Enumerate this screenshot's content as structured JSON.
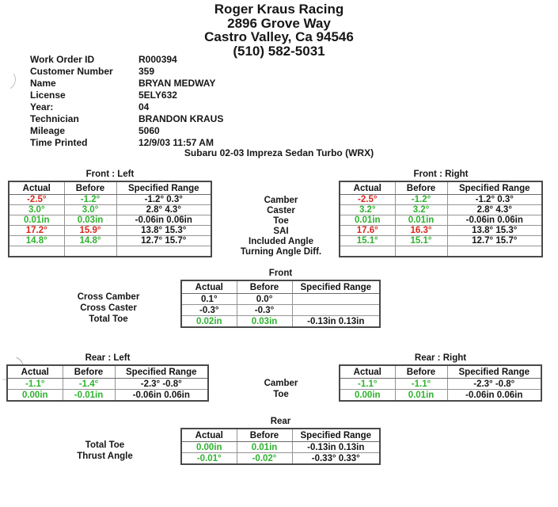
{
  "colors": {
    "ok_green": "#2eb22e",
    "alert_red": "#d8271f"
  },
  "header": {
    "business_name": "Roger Kraus Racing",
    "address_line1": "2896 Grove Way",
    "address_line2": "Castro Valley, Ca 94546",
    "phone": "(510) 582-5031"
  },
  "work_order": [
    {
      "label": "Work Order ID",
      "value": "R000394"
    },
    {
      "label": "Customer Number",
      "value": "359"
    },
    {
      "label": "Name",
      "value": "BRYAN MEDWAY"
    },
    {
      "label": "License",
      "value": "5ELY632"
    },
    {
      "label": "Year:",
      "value": "04"
    },
    {
      "label": "Technician",
      "value": "BRANDON KRAUS"
    },
    {
      "label": "Mileage",
      "value": "5060"
    },
    {
      "label": "Time Printed",
      "value": "12/9/03 11:57 AM"
    }
  ],
  "vehicle_title": "Subaru 02-03 Impreza Sedan Turbo (WRX)",
  "col_headers": [
    "Actual",
    "Before",
    "Specified Range"
  ],
  "front": {
    "left_title": "Front : Left",
    "right_title": "Front : Right",
    "row_labels": [
      "Camber",
      "Caster",
      "Toe",
      "SAI",
      "Included Angle",
      "Turning Angle Diff."
    ],
    "left_rows": [
      [
        {
          "t": "-2.5°",
          "c": "r"
        },
        {
          "t": "-1.2°",
          "c": "g"
        },
        {
          "t": "-1.2° 0.3°",
          "c": "k"
        }
      ],
      [
        {
          "t": "3.0°",
          "c": "g"
        },
        {
          "t": "3.0°",
          "c": "g"
        },
        {
          "t": "2.8° 4.3°",
          "c": "k"
        }
      ],
      [
        {
          "t": "0.01in",
          "c": "g"
        },
        {
          "t": "0.03in",
          "c": "g"
        },
        {
          "t": "-0.06in 0.06in",
          "c": "k"
        }
      ],
      [
        {
          "t": "17.2°",
          "c": "r"
        },
        {
          "t": "15.9°",
          "c": "r"
        },
        {
          "t": "13.8° 15.3°",
          "c": "k"
        }
      ],
      [
        {
          "t": "14.8°",
          "c": "g"
        },
        {
          "t": "14.8°",
          "c": "g"
        },
        {
          "t": "12.7° 15.7°",
          "c": "k"
        }
      ],
      [
        {
          "t": "",
          "c": "k"
        },
        {
          "t": "",
          "c": "k"
        },
        {
          "t": "",
          "c": "k"
        }
      ]
    ],
    "right_rows": [
      [
        {
          "t": "-2.5°",
          "c": "r"
        },
        {
          "t": "-1.2°",
          "c": "g"
        },
        {
          "t": "-1.2° 0.3°",
          "c": "k"
        }
      ],
      [
        {
          "t": "3.2°",
          "c": "g"
        },
        {
          "t": "3.2°",
          "c": "g"
        },
        {
          "t": "2.8° 4.3°",
          "c": "k"
        }
      ],
      [
        {
          "t": "0.01in",
          "c": "g"
        },
        {
          "t": "0.01in",
          "c": "g"
        },
        {
          "t": "-0.06in 0.06in",
          "c": "k"
        }
      ],
      [
        {
          "t": "17.6°",
          "c": "r"
        },
        {
          "t": "16.3°",
          "c": "r"
        },
        {
          "t": "13.8° 15.3°",
          "c": "k"
        }
      ],
      [
        {
          "t": "15.1°",
          "c": "g"
        },
        {
          "t": "15.1°",
          "c": "g"
        },
        {
          "t": "12.7° 15.7°",
          "c": "k"
        }
      ],
      [
        {
          "t": "",
          "c": "k"
        },
        {
          "t": "",
          "c": "k"
        },
        {
          "t": "",
          "c": "k"
        }
      ]
    ],
    "cross_title": "Front",
    "cross_labels": [
      "Cross Camber",
      "Cross Caster",
      "Total Toe"
    ],
    "cross_rows": [
      [
        {
          "t": "0.1°",
          "c": "k"
        },
        {
          "t": "0.0°",
          "c": "k"
        },
        {
          "t": "",
          "c": "k"
        }
      ],
      [
        {
          "t": "-0.3°",
          "c": "k"
        },
        {
          "t": "-0.3°",
          "c": "k"
        },
        {
          "t": "",
          "c": "k"
        }
      ],
      [
        {
          "t": "0.02in",
          "c": "g"
        },
        {
          "t": "0.03in",
          "c": "g"
        },
        {
          "t": "-0.13in 0.13in",
          "c": "k"
        }
      ]
    ]
  },
  "rear": {
    "left_title": "Rear : Left",
    "right_title": "Rear : Right",
    "row_labels": [
      "Camber",
      "Toe"
    ],
    "left_rows": [
      [
        {
          "t": "-1.1°",
          "c": "g"
        },
        {
          "t": "-1.4°",
          "c": "g"
        },
        {
          "t": "-2.3° -0.8°",
          "c": "k"
        }
      ],
      [
        {
          "t": "0.00in",
          "c": "g"
        },
        {
          "t": "-0.01in",
          "c": "g"
        },
        {
          "t": "-0.06in 0.06in",
          "c": "k"
        }
      ]
    ],
    "right_rows": [
      [
        {
          "t": "-1.1°",
          "c": "g"
        },
        {
          "t": "-1.1°",
          "c": "g"
        },
        {
          "t": "-2.3° -0.8°",
          "c": "k"
        }
      ],
      [
        {
          "t": "0.00in",
          "c": "g"
        },
        {
          "t": "0.01in",
          "c": "g"
        },
        {
          "t": "-0.06in 0.06in",
          "c": "k"
        }
      ]
    ],
    "cross_title": "Rear",
    "cross_labels": [
      "Total Toe",
      "Thrust Angle"
    ],
    "cross_rows": [
      [
        {
          "t": "0.00in",
          "c": "g"
        },
        {
          "t": "0.01in",
          "c": "g"
        },
        {
          "t": "-0.13in 0.13in",
          "c": "k"
        }
      ],
      [
        {
          "t": "-0.01°",
          "c": "g"
        },
        {
          "t": "-0.02°",
          "c": "g"
        },
        {
          "t": "-0.33° 0.33°",
          "c": "k"
        }
      ]
    ]
  }
}
